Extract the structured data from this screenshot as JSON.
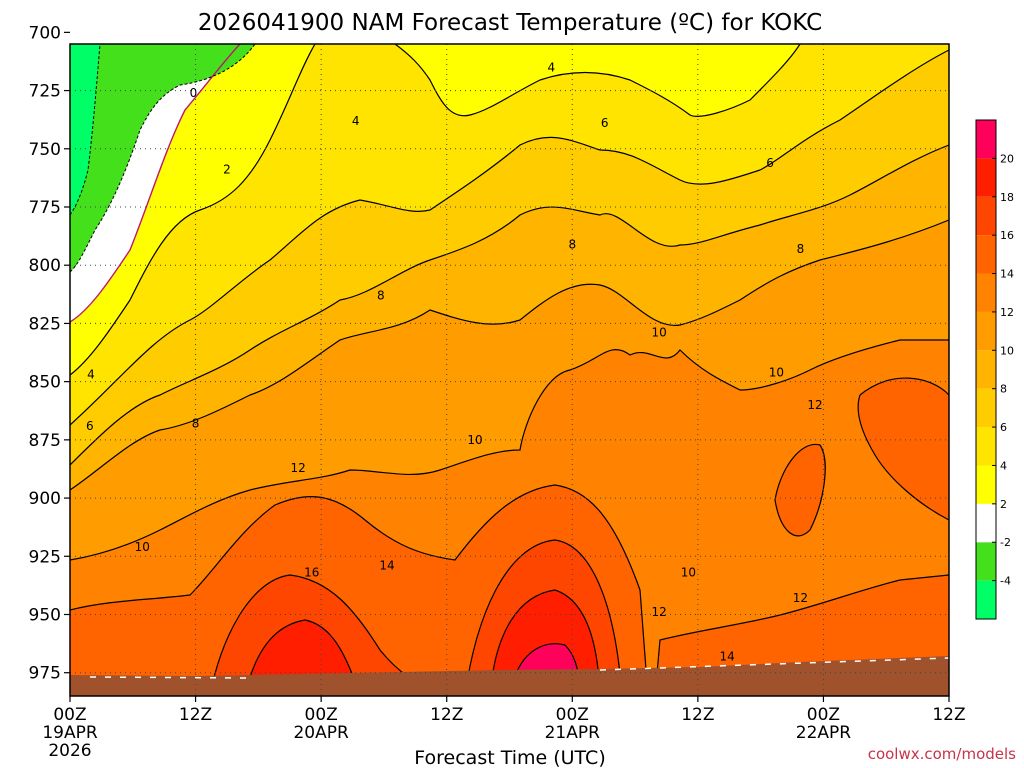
{
  "chart_data": {
    "type": "heatmap",
    "title": "2026041900 NAM Forecast Temperature (ºC) for KOKC",
    "xlabel": "Forecast Time (UTC)",
    "ylabel": "",
    "credit": "coolwx.com/models",
    "x_range_hours": [
      0,
      84
    ],
    "y_range_hpa": [
      705,
      985
    ],
    "x_ticks": [
      {
        "hour": 0,
        "label": "00Z",
        "sub": "19APR",
        "sub2": "2026"
      },
      {
        "hour": 12,
        "label": "12Z",
        "sub": "",
        "sub2": ""
      },
      {
        "hour": 24,
        "label": "00Z",
        "sub": "20APR",
        "sub2": ""
      },
      {
        "hour": 36,
        "label": "12Z",
        "sub": "",
        "sub2": ""
      },
      {
        "hour": 48,
        "label": "00Z",
        "sub": "21APR",
        "sub2": ""
      },
      {
        "hour": 60,
        "label": "12Z",
        "sub": "",
        "sub2": ""
      },
      {
        "hour": 72,
        "label": "00Z",
        "sub": "22APR",
        "sub2": ""
      },
      {
        "hour": 84,
        "label": "12Z",
        "sub": "",
        "sub2": ""
      }
    ],
    "y_ticks": [
      700,
      725,
      750,
      775,
      800,
      825,
      850,
      875,
      900,
      925,
      950,
      975
    ],
    "grid": true,
    "colorbar": {
      "levels": [
        -6,
        -4,
        -2,
        2,
        4,
        6,
        8,
        10,
        12,
        14,
        16,
        18,
        20,
        22
      ],
      "colors": [
        "#00ff66",
        "#44e01c",
        "#ffffff",
        "#ffff00",
        "#ffe400",
        "#ffcc00",
        "#ffb400",
        "#ff9c00",
        "#ff8200",
        "#ff6400",
        "#ff4600",
        "#ff1e00",
        "#ff005a"
      ],
      "labels": [
        "-4",
        "-2",
        "2",
        "4",
        "6",
        "8",
        "10",
        "12",
        "14",
        "16",
        "18",
        "20"
      ]
    },
    "contour_labels": [
      {
        "text": "0",
        "hour": 11.8,
        "hpa": 726
      },
      {
        "text": "2",
        "hour": 15,
        "hpa": 759
      },
      {
        "text": "4",
        "hour": 27.3,
        "hpa": 738
      },
      {
        "text": "4",
        "hour": 46,
        "hpa": 715
      },
      {
        "text": "4",
        "hour": 2,
        "hpa": 847
      },
      {
        "text": "6",
        "hour": 51.1,
        "hpa": 739
      },
      {
        "text": "6",
        "hour": 66.9,
        "hpa": 756
      },
      {
        "text": "6",
        "hour": 1.9,
        "hpa": 869
      },
      {
        "text": "8",
        "hour": 48,
        "hpa": 791
      },
      {
        "text": "8",
        "hour": 29.7,
        "hpa": 813
      },
      {
        "text": "8",
        "hour": 69.8,
        "hpa": 793
      },
      {
        "text": "8",
        "hour": 12,
        "hpa": 868
      },
      {
        "text": "10",
        "hour": 56.3,
        "hpa": 829
      },
      {
        "text": "10",
        "hour": 67.5,
        "hpa": 846
      },
      {
        "text": "10",
        "hour": 38.7,
        "hpa": 875
      },
      {
        "text": "10",
        "hour": 6.9,
        "hpa": 921
      },
      {
        "text": "10",
        "hour": 59.1,
        "hpa": 932
      },
      {
        "text": "12",
        "hour": 21.8,
        "hpa": 887
      },
      {
        "text": "12",
        "hour": 71.2,
        "hpa": 860
      },
      {
        "text": "12",
        "hour": 56.3,
        "hpa": 949
      },
      {
        "text": "12",
        "hour": 69.8,
        "hpa": 943
      },
      {
        "text": "14",
        "hour": 30.3,
        "hpa": 929
      },
      {
        "text": "14",
        "hour": 62.8,
        "hpa": 968
      },
      {
        "text": "16",
        "hour": 23.1,
        "hpa": 932
      }
    ]
  }
}
